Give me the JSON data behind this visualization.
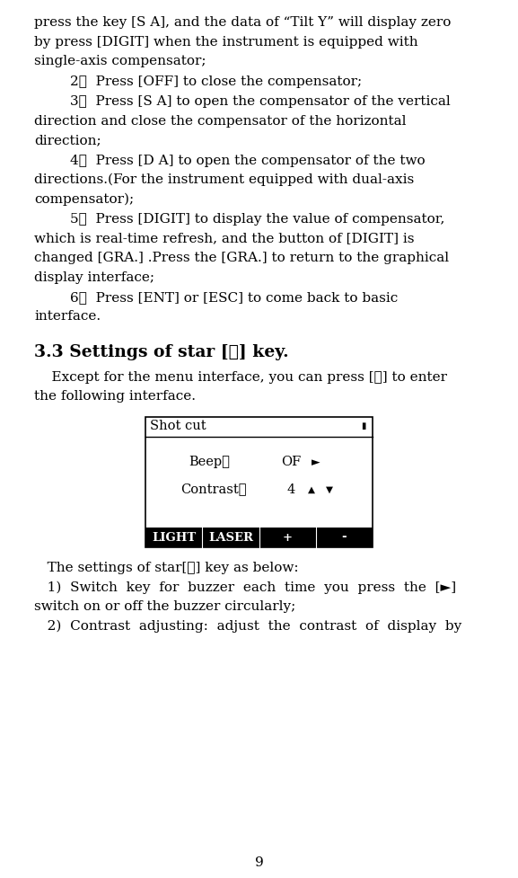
{
  "page_number": "9",
  "bg_color": "#ffffff",
  "text_color": "#000000",
  "font_size_body": 11.0,
  "font_size_heading": 13.5,
  "para1_lines": [
    "press the key [S A], and the data of “Tilt Y” will display zero",
    "by press [DIGIT] when the instrument is equipped with",
    "single-axis compensator;"
  ],
  "item2": "2）  Press [OFF] to close the compensator;",
  "item3_lines": [
    "3）  Press [S A] to open the compensator of the vertical",
    "direction and close the compensator of the horizontal",
    "direction;"
  ],
  "item4_lines": [
    "4）  Press [D A] to open the compensator of the two",
    "directions.(For the instrument equipped with dual-axis",
    "compensator);"
  ],
  "item5_lines": [
    "5）  Press [DIGIT] to display the value of compensator,",
    "which is real-time refresh, and the button of [DIGIT] is",
    "changed [GRA.] .Press the [GRA.] to return to the graphical",
    "display interface;"
  ],
  "item6_lines": [
    "6）  Press [ENT] or [ESC] to come back to basic",
    "interface."
  ],
  "heading": "3.3 Settings of star [★] key.",
  "intro_line1": "    Except for the menu interface, you can press [★] to enter",
  "intro_line2": "the following interface.",
  "box_title": "Shot cut",
  "box_beep_label": "Beep：",
  "box_beep_value": "OF",
  "box_beep_arrow": "►",
  "box_contrast_label": "Contrast：",
  "box_contrast_value": "4",
  "box_contrast_up": "▲",
  "box_contrast_down": "▼",
  "box_bottom_items": [
    "LIGHT",
    "LASER",
    "+",
    "-"
  ],
  "after_box_line1": "   The settings of star[★] key as below:",
  "after_box_line2": "   1)  Switch  key  for  buzzer  each  time  you  press  the  [►]",
  "after_box_line3": "switch on or off the buzzer circularly;",
  "after_box_line4": "   2)  Contrast  adjusting:  adjust  the  contrast  of  display  by"
}
